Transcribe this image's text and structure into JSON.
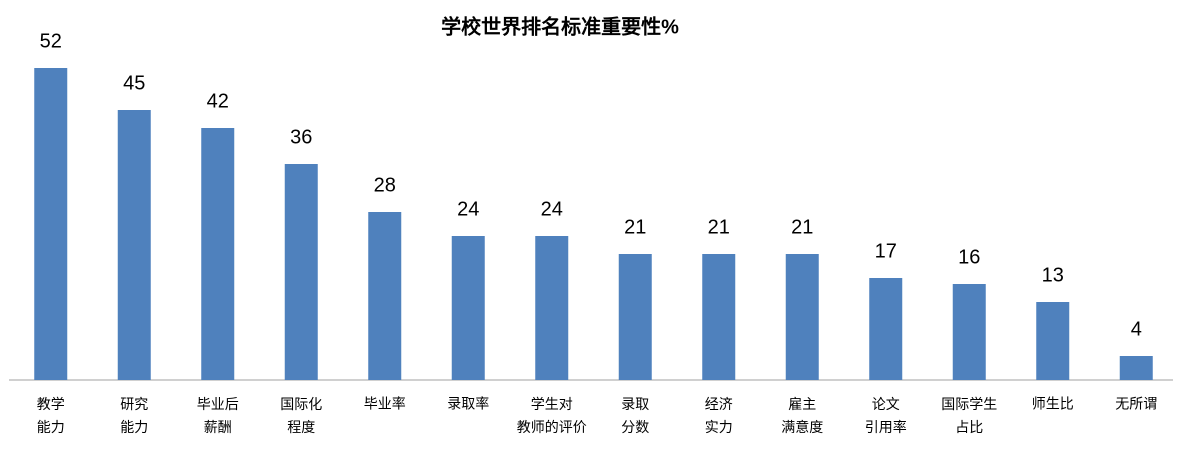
{
  "chart_data": {
    "type": "bar",
    "title": "学校世界排名标准重要性%",
    "categories": [
      "教学\n能力",
      "研究\n能力",
      "毕业后\n薪酬",
      "国际化\n程度",
      "毕业率",
      "录取率",
      "学生对\n教师的评价",
      "录取\n分数",
      "经济\n实力",
      "雇主\n满意度",
      "论文\n引用率",
      "国际学生\n占比",
      "师生比",
      "无所谓"
    ],
    "values": [
      52,
      45,
      42,
      36,
      28,
      24,
      24,
      21,
      21,
      21,
      17,
      16,
      13,
      4
    ],
    "color": "#4f81bd"
  }
}
